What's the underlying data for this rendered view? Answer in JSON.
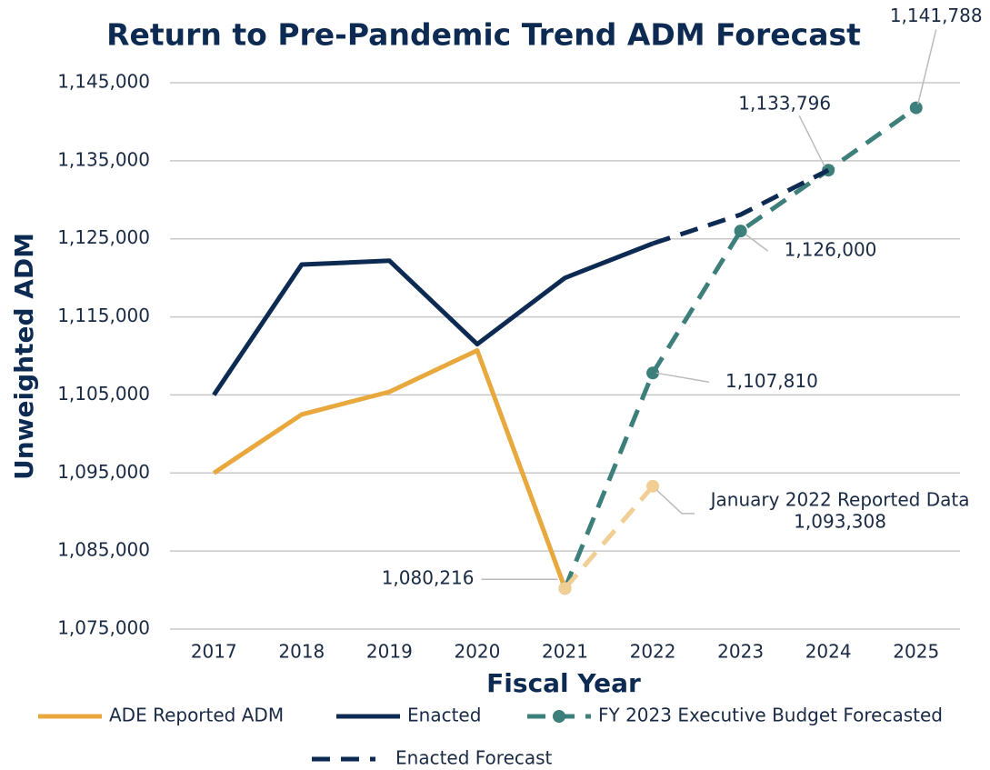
{
  "chart_data": {
    "type": "line",
    "title": "Return to Pre-Pandemic Trend ADM Forecast",
    "x_label": "Fiscal Year",
    "y_label": "Unweighted ADM",
    "categories": [
      "2017",
      "2018",
      "2019",
      "2020",
      "2021",
      "2022",
      "2023",
      "2024",
      "2025"
    ],
    "ylim": [
      1075000,
      1145000
    ],
    "yticks": [
      {
        "value": 1075000,
        "label": "1,075,000"
      },
      {
        "value": 1085000,
        "label": "1,085,000"
      },
      {
        "value": 1095000,
        "label": "1,095,000"
      },
      {
        "value": 1105000,
        "label": "1,105,000"
      },
      {
        "value": 1115000,
        "label": "1,115,000"
      },
      {
        "value": 1125000,
        "label": "1,125,000"
      },
      {
        "value": 1135000,
        "label": "1,135,000"
      },
      {
        "value": 1145000,
        "label": "1,145,000"
      }
    ],
    "grid": true,
    "legend": "bottom",
    "series": [
      {
        "name": "ADE Reported ADM",
        "color": "#e8a83e",
        "dashed": false,
        "markers": false,
        "values": [
          1095000,
          1102500,
          1105400,
          1110700,
          1080216,
          null,
          null,
          null,
          null
        ]
      },
      {
        "name": "Enacted",
        "color": "#0d2b52",
        "dashed": false,
        "markers": false,
        "values": [
          1105000,
          1121700,
          1122200,
          1111500,
          1120000,
          1124400,
          null,
          null,
          null
        ]
      },
      {
        "name": "FY 2023 Executive Budget Forecasted",
        "color": "#3d7f7a",
        "dashed": true,
        "markers": true,
        "values": [
          null,
          null,
          null,
          null,
          1080216,
          1107810,
          1126000,
          1133796,
          1141788
        ],
        "value_labels": [
          null,
          null,
          null,
          null,
          "1,080,216",
          "1,107,810",
          "1,126,000",
          "1,133,796",
          "1,141,788"
        ]
      },
      {
        "name": "Enacted Forecast",
        "color": "#0d2b52",
        "dashed": true,
        "markers": false,
        "values": [
          null,
          null,
          null,
          null,
          null,
          1124400,
          1128100,
          1133800,
          null
        ]
      },
      {
        "color": "#f1cf94",
        "dashed": true,
        "markers": true,
        "values": [
          null,
          null,
          null,
          null,
          1080216,
          1093308,
          null,
          null,
          null
        ],
        "value_labels": [
          null,
          null,
          null,
          null,
          null,
          "1,093,308",
          null,
          null,
          null
        ],
        "annotation": "January 2022 Reported Data"
      }
    ]
  }
}
